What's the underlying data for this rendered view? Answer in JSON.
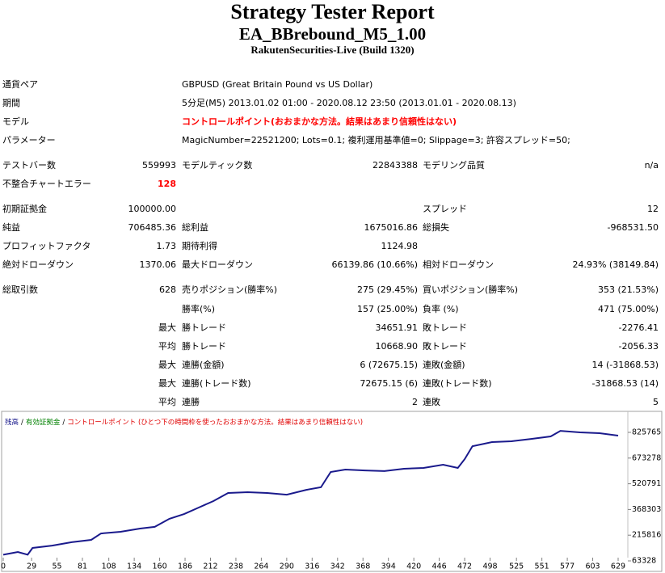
{
  "header": {
    "title": "Strategy Tester Report",
    "subtitle": "EA_BBrebound_M5_1.00",
    "server": "RakutenSecurities-Live (Build 1320)"
  },
  "info": [
    [
      "通貨ペア",
      "GBPUSD (Great Britain Pound vs US Dollar)"
    ],
    [
      "期間",
      "5分足(M5) 2013.01.02 01:00 - 2020.08.12 23:50 (2013.01.01 - 2020.08.13)"
    ],
    [
      "モデル",
      "コントロールポイント(おおまかな方法。結果はあまり信頼性はない)"
    ],
    [
      "パラメーター",
      "MagicNumber=22521200; Lots=0.1; 複利運用基準値=0; Slippage=3; 許容スプレッド=50;"
    ]
  ],
  "stats": [
    [
      "テストバー数",
      "559993",
      "モデルティック数",
      "22843388",
      "モデリング品質",
      "n/a"
    ],
    [
      "不整合チャートエラー",
      "128",
      null,
      null,
      null,
      null
    ],
    [
      "初期証拠金",
      "100000.00",
      null,
      null,
      "スプレッド",
      "12"
    ],
    [
      "純益",
      "706485.36",
      "総利益",
      "1675016.86",
      "総損失",
      "-968531.50"
    ],
    [
      "プロフィットファクタ",
      "1.73",
      "期待利得",
      "1124.98",
      null,
      null
    ],
    [
      "絶対ドローダウン",
      "1370.06",
      "最大ドローダウン",
      "66139.86 (10.66%)",
      "相対ドローダウン",
      "24.93% (38149.84)"
    ],
    [
      "総取引数",
      "628",
      "売りポジション(勝率%)",
      "275 (29.45%)",
      "買いポジション(勝率%)",
      "353 (21.53%)"
    ],
    [
      null,
      null,
      "勝率(%)",
      "157 (25.00%)",
      "負率 (%)",
      "471 (75.00%)"
    ],
    [
      null,
      "最大",
      "勝トレード",
      "34651.91",
      "敗トレード",
      "-2276.41"
    ],
    [
      null,
      "平均",
      "勝トレード",
      "10668.90",
      "敗トレード",
      "-2056.33"
    ],
    [
      null,
      "最大",
      "連勝(金額)",
      "6 (72675.15)",
      "連敗(金額)",
      "14 (-31868.53)"
    ],
    [
      null,
      "最大",
      "連勝(トレード数)",
      "72675.15 (6)",
      "連敗(トレード数)",
      "-31868.53 (14)"
    ],
    [
      null,
      "平均",
      "連勝",
      "2",
      "連敗",
      "5"
    ]
  ],
  "chart_data": {
    "type": "line",
    "separator": "/",
    "notes": [
      {
        "text": "有効証拠金",
        "color": "#008000"
      },
      {
        "text": "コントロールポイント (ひとつ下の時間枠を使ったおおまかな方法。結果はあまり信頼性はない)",
        "color": "#e00000"
      }
    ],
    "x": [
      0,
      15,
      25,
      30,
      50,
      70,
      90,
      100,
      120,
      140,
      155,
      170,
      185,
      200,
      215,
      230,
      250,
      270,
      290,
      310,
      325,
      335,
      350,
      370,
      390,
      410,
      430,
      450,
      465,
      472,
      480,
      500,
      520,
      540,
      560,
      570,
      590,
      610,
      629
    ],
    "series": [
      {
        "name": "残高",
        "color": "#1a1a8c",
        "values": [
          100000,
          116000,
          100000,
          140000,
          154000,
          174000,
          188000,
          226000,
          236000,
          255000,
          265000,
          313000,
          341000,
          380000,
          418000,
          466000,
          471000,
          466000,
          456000,
          485000,
          500000,
          591000,
          605000,
          600000,
          596000,
          610000,
          615000,
          634000,
          615000,
          667000,
          744000,
          768000,
          773000,
          787000,
          802000,
          835000,
          826000,
          821000,
          806485
        ]
      }
    ],
    "xlim": [
      0,
      629
    ],
    "xticks": [
      0,
      29,
      55,
      81,
      108,
      134,
      160,
      186,
      212,
      238,
      264,
      290,
      316,
      342,
      368,
      394,
      420,
      446,
      472,
      498,
      525,
      551,
      577,
      603,
      629
    ],
    "ylim": [
      34558,
      912075
    ],
    "yticks": [
      63328,
      215816,
      368303,
      520791,
      673278,
      825765
    ],
    "grid": false
  }
}
